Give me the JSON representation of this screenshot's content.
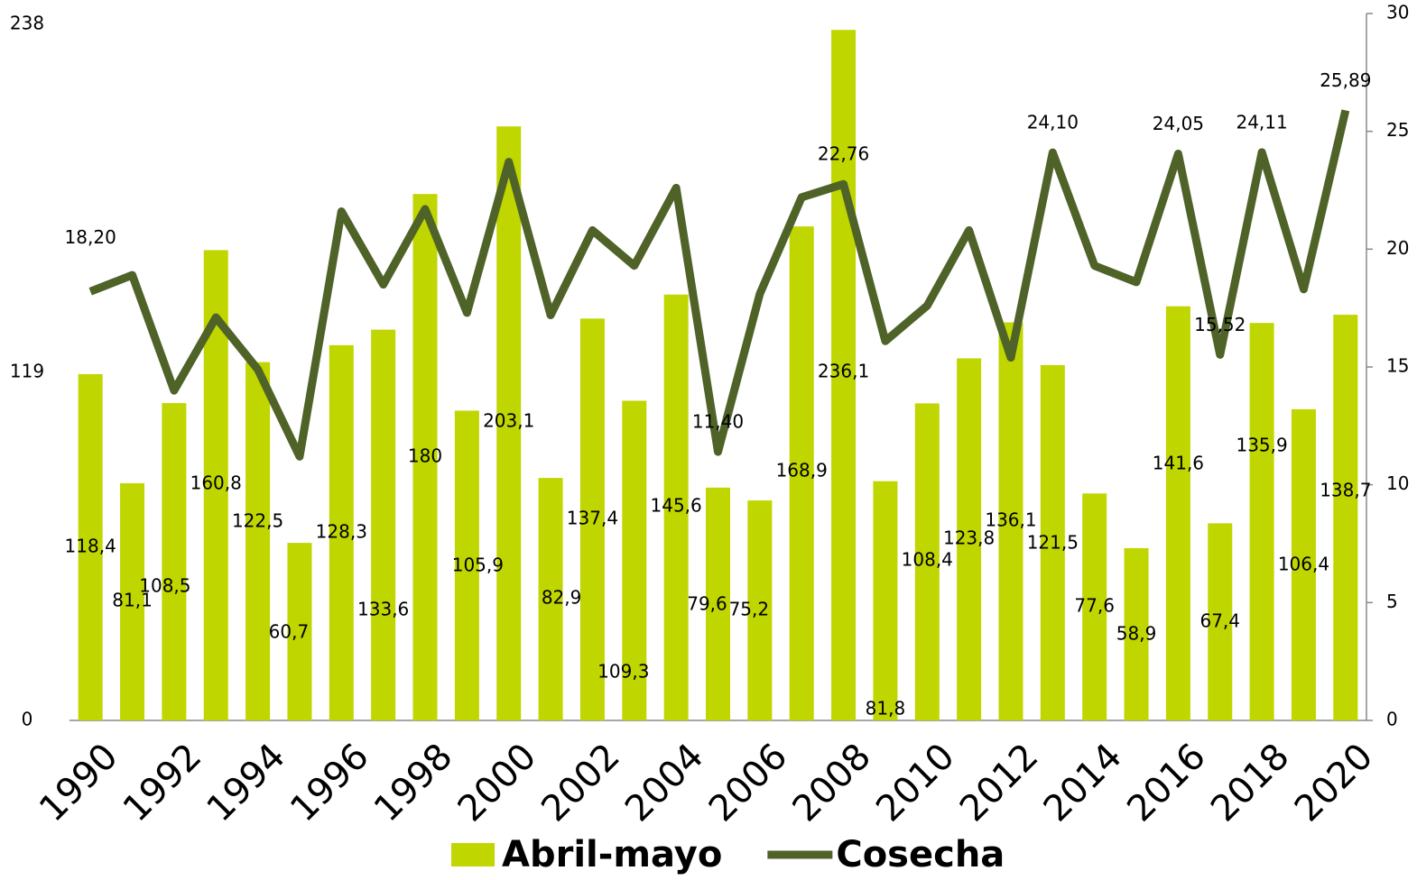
{
  "chart_data": {
    "type": "bar_line",
    "categories": [
      "1990",
      null,
      "1992",
      null,
      "1994",
      null,
      "1996",
      null,
      "1998",
      null,
      "2000",
      null,
      "2002",
      null,
      "2004",
      null,
      "2006",
      null,
      "2008",
      null,
      "2010",
      null,
      "2012",
      null,
      "2014",
      null,
      "2016",
      null,
      "2018",
      null,
      "2020"
    ],
    "series": [
      {
        "name": "Abril-mayo",
        "type": "bar",
        "color": "#bfd600",
        "axis": "y",
        "values": [
          118.4,
          81.1,
          108.5,
          160.8,
          122.5,
          60.7,
          128.3,
          133.6,
          180,
          105.9,
          203.1,
          82.9,
          137.4,
          109.3,
          145.6,
          79.6,
          75.2,
          168.9,
          236.1,
          81.8,
          108.4,
          123.8,
          136.1,
          121.5,
          77.6,
          58.9,
          141.6,
          67.4,
          135.9,
          106.4,
          138.7
        ],
        "value_labels": [
          "118,4",
          "81,1",
          "108,5",
          "160,8",
          "122,5",
          "60,7",
          "128,3",
          "133,6",
          "180",
          "105,9",
          "203,1",
          "82,9",
          "137,4",
          "109,3",
          "145,6",
          "79,6",
          "75,2",
          "168,9",
          "236,1",
          "81,8",
          "108,4",
          "123,8",
          "136,1",
          "121,5",
          "77,6",
          "58,9",
          "141,6",
          "67,4",
          "135,9",
          "106,4",
          "138,7"
        ]
      },
      {
        "name": "Cosecha",
        "type": "line",
        "color": "#4f6228",
        "axis": "y2",
        "values": [
          18.2,
          18.9,
          14.0,
          17.1,
          14.9,
          11.2,
          21.6,
          18.5,
          21.7,
          17.3,
          23.7,
          17.2,
          20.8,
          19.3,
          22.6,
          11.4,
          18.1,
          22.2,
          22.76,
          16.1,
          17.6,
          20.8,
          15.4,
          24.1,
          19.3,
          18.6,
          24.05,
          15.52,
          24.11,
          18.3,
          25.89
        ],
        "value_labels": [
          "18,20",
          null,
          null,
          null,
          null,
          null,
          null,
          null,
          null,
          null,
          null,
          null,
          null,
          null,
          null,
          "11,40",
          null,
          null,
          "22,76",
          null,
          null,
          null,
          null,
          "24,10",
          null,
          null,
          "24,05",
          "15,52",
          "24,11",
          null,
          "25,89"
        ]
      }
    ],
    "ylim": [
      0,
      238
    ],
    "yticks": [
      0,
      119,
      238
    ],
    "y2lim": [
      0,
      30
    ],
    "y2ticks": [
      0,
      5,
      10,
      15,
      20,
      25,
      30
    ],
    "legend": "bottom"
  }
}
